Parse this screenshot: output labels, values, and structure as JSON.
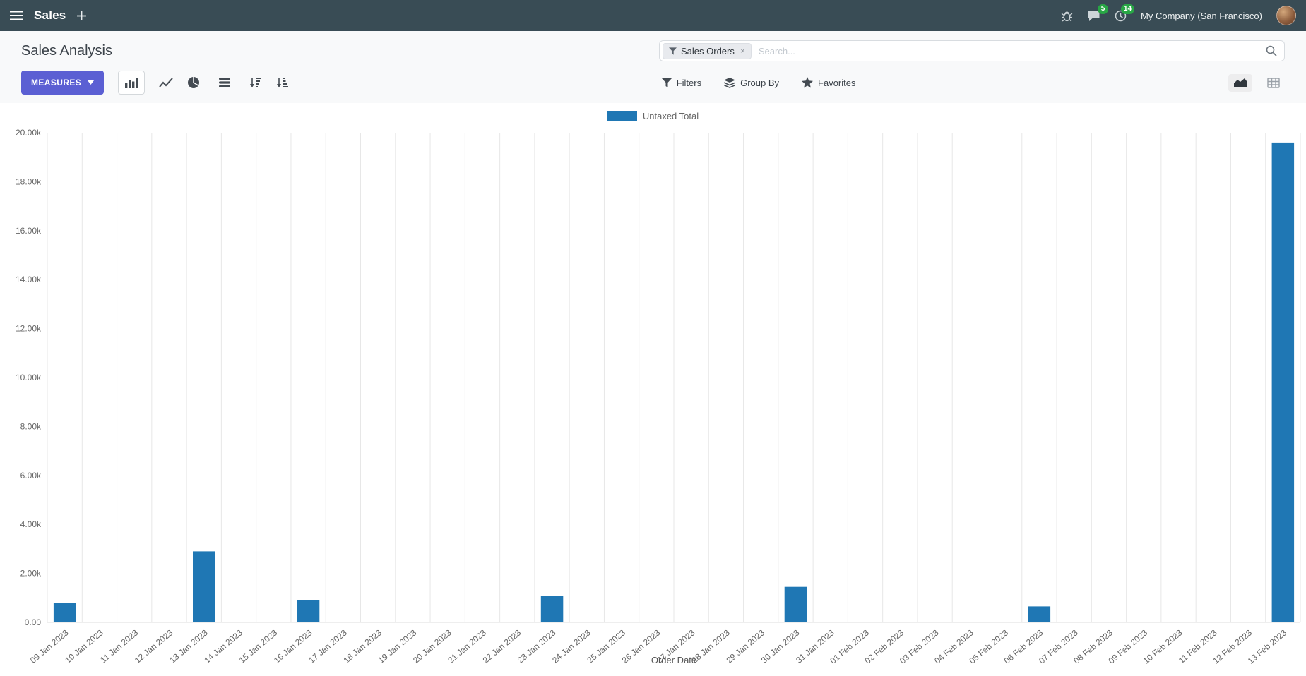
{
  "navbar": {
    "app_name": "Sales",
    "messages_badge": "5",
    "activities_badge": "14",
    "company": "My Company (San Francisco)"
  },
  "control": {
    "title": "Sales Analysis",
    "measures_label": "MEASURES",
    "filters_label": "Filters",
    "group_by_label": "Group By",
    "favorites_label": "Favorites",
    "search": {
      "facet_label": "Sales Orders",
      "remove_label": "×",
      "placeholder": "Search..."
    }
  },
  "colors": {
    "navbar_bg": "#394C55",
    "primary_button": "#5B5FD3",
    "badge_green": "#28A745",
    "bar_blue": "#1F77B4"
  },
  "chart_data": {
    "type": "bar",
    "title": "",
    "legend": "Untaxed Total",
    "color": "#1F77B4",
    "xlabel": "Order Date",
    "ylabel": "",
    "ylim": [
      0,
      20000
    ],
    "ytick_step": 2000,
    "ytick_labels": [
      "0.00",
      "2.00k",
      "4.00k",
      "6.00k",
      "8.00k",
      "10.00k",
      "12.00k",
      "14.00k",
      "16.00k",
      "18.00k",
      "20.00k"
    ],
    "grid": "vertical",
    "legend_position": "top-center",
    "categories": [
      "09 Jan 2023",
      "10 Jan 2023",
      "11 Jan 2023",
      "12 Jan 2023",
      "13 Jan 2023",
      "14 Jan 2023",
      "15 Jan 2023",
      "16 Jan 2023",
      "17 Jan 2023",
      "18 Jan 2023",
      "19 Jan 2023",
      "20 Jan 2023",
      "21 Jan 2023",
      "22 Jan 2023",
      "23 Jan 2023",
      "24 Jan 2023",
      "25 Jan 2023",
      "26 Jan 2023",
      "27 Jan 2023",
      "28 Jan 2023",
      "29 Jan 2023",
      "30 Jan 2023",
      "31 Jan 2023",
      "01 Feb 2023",
      "02 Feb 2023",
      "03 Feb 2023",
      "04 Feb 2023",
      "05 Feb 2023",
      "06 Feb 2023",
      "07 Feb 2023",
      "08 Feb 2023",
      "09 Feb 2023",
      "10 Feb 2023",
      "11 Feb 2023",
      "12 Feb 2023",
      "13 Feb 2023"
    ],
    "values": [
      800,
      0,
      0,
      0,
      2900,
      0,
      0,
      900,
      0,
      0,
      0,
      0,
      0,
      0,
      1080,
      0,
      0,
      0,
      0,
      0,
      0,
      1450,
      0,
      0,
      0,
      0,
      0,
      0,
      650,
      0,
      0,
      0,
      0,
      0,
      0,
      19600
    ]
  }
}
